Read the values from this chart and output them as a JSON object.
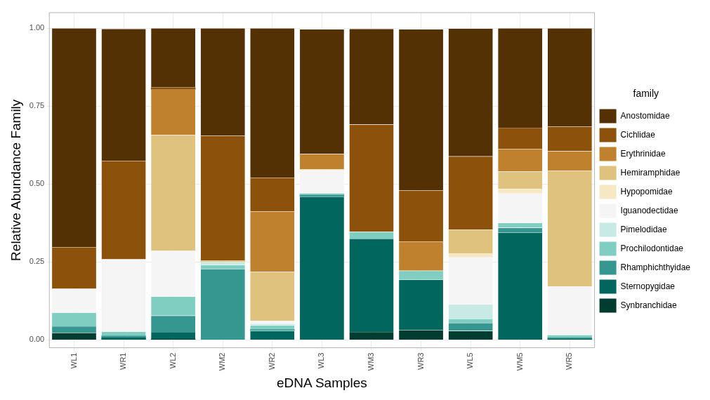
{
  "chart_data": {
    "type": "bar",
    "stacked": true,
    "xlabel": "eDNA Samples",
    "ylabel": "Relative Abundance Family",
    "legend_title": "family",
    "legend": "right",
    "grid": true,
    "categories": [
      "WL1",
      "WR1",
      "WL2",
      "WM2",
      "WR2",
      "WL3",
      "WM3",
      "WR3",
      "WL5",
      "WM5",
      "WR5"
    ],
    "ylim": [
      -0.025,
      1.05
    ],
    "yticks": [
      {
        "value": 0,
        "label": "0.00"
      },
      {
        "value": 0.25,
        "label": "0.25"
      },
      {
        "value": 0.5,
        "label": "0.50"
      },
      {
        "value": 0.75,
        "label": "0.75"
      },
      {
        "value": 1,
        "label": "1.00"
      }
    ],
    "series": [
      {
        "name": "Synbranchidae",
        "color": "#003c30",
        "values": [
          0.023,
          0,
          0.003,
          0,
          0,
          null,
          0.026,
          0.032,
          0.029,
          0,
          0
        ]
      },
      {
        "name": "Sternopygidae",
        "color": "#01665e",
        "values": [
          0,
          0.008,
          0.023,
          0,
          0.029,
          0.46,
          0.299,
          0.161,
          0,
          0.345,
          0.005
        ]
      },
      {
        "name": "Rhamphichthyidae",
        "color": "#35978f",
        "values": [
          0.021,
          0.006,
          0.052,
          0.228,
          0.005,
          0.006,
          0,
          0,
          0.026,
          0.015,
          0.003
        ]
      },
      {
        "name": "Prochilodontidae",
        "color": "#80cdc1",
        "values": [
          0.044,
          0.013,
          0.061,
          0.013,
          0.013,
          0.004,
          0.022,
          0.029,
          0.013,
          0.016,
          0.007
        ]
      },
      {
        "name": "Pimelodidae",
        "color": "#c7eae5",
        "values": [
          0,
          null,
          0,
          0.01,
          0.004,
          0,
          null,
          null,
          0.047,
          0,
          0
        ]
      },
      {
        "name": "Iguanodectidae",
        "color": "#f5f5f5",
        "values": [
          0.076,
          0.232,
          0.147,
          0,
          0.011,
          0.074,
          0,
          0,
          0.15,
          0.094,
          0.157
        ]
      },
      {
        "name": "Hypopomidae",
        "color": "#f6e8c3",
        "values": [
          0,
          0,
          0,
          0,
          0,
          0.004,
          0,
          0,
          0.013,
          0.015,
          0
        ]
      },
      {
        "name": "Hemiramphidae",
        "color": "#dfc27d",
        "values": [
          0,
          0,
          0.371,
          0.004,
          0.156,
          0,
          0,
          0,
          0.076,
          0.055,
          0.371
        ]
      },
      {
        "name": "Erythrinidae",
        "color": "#bf812d",
        "values": [
          0,
          0,
          0.146,
          0,
          0.194,
          0.049,
          0,
          0.094,
          0,
          0.073,
          0.063
        ]
      },
      {
        "name": "Cichlidae",
        "color": "#8c510a",
        "values": [
          0.134,
          0.316,
          0.007,
          0.4,
          0.109,
          0,
          0.344,
          0.164,
          0.235,
          0.068,
          0.079
        ]
      },
      {
        "name": "Anostomidae",
        "color": "#543005",
        "values": [
          0.702,
          0.423,
          0.19,
          0.345,
          0.479,
          0.4,
          0.307,
          0.517,
          0.41,
          0.319,
          0.315
        ]
      }
    ]
  }
}
